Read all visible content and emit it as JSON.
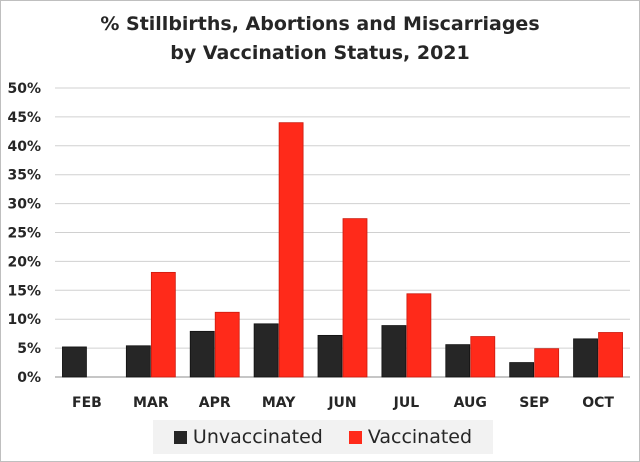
{
  "chart_data": {
    "type": "bar",
    "title": "% Stillbirths, Abortions and Miscarriages",
    "subtitle": "by Vaccination Status, 2021",
    "categories": [
      "FEB",
      "MAR",
      "APR",
      "MAY",
      "JUN",
      "JUL",
      "AUG",
      "SEP",
      "OCT"
    ],
    "series": [
      {
        "name": "Unvaccinated",
        "color": "#262626",
        "values": [
          5.2,
          5.4,
          7.9,
          9.2,
          7.2,
          8.9,
          5.6,
          2.5,
          6.6
        ]
      },
      {
        "name": "Vaccinated",
        "color": "#ff2a1a",
        "values": [
          null,
          18.1,
          11.2,
          44.0,
          27.4,
          14.4,
          7.0,
          4.9,
          7.7
        ]
      }
    ],
    "yticks": [
      "0%",
      "5%",
      "10%",
      "15%",
      "20%",
      "25%",
      "30%",
      "35%",
      "40%",
      "45%",
      "50%"
    ],
    "ylim": [
      0,
      50
    ],
    "xlabel": "",
    "ylabel": "",
    "grid": "horizontal",
    "legend_position": "bottom"
  }
}
